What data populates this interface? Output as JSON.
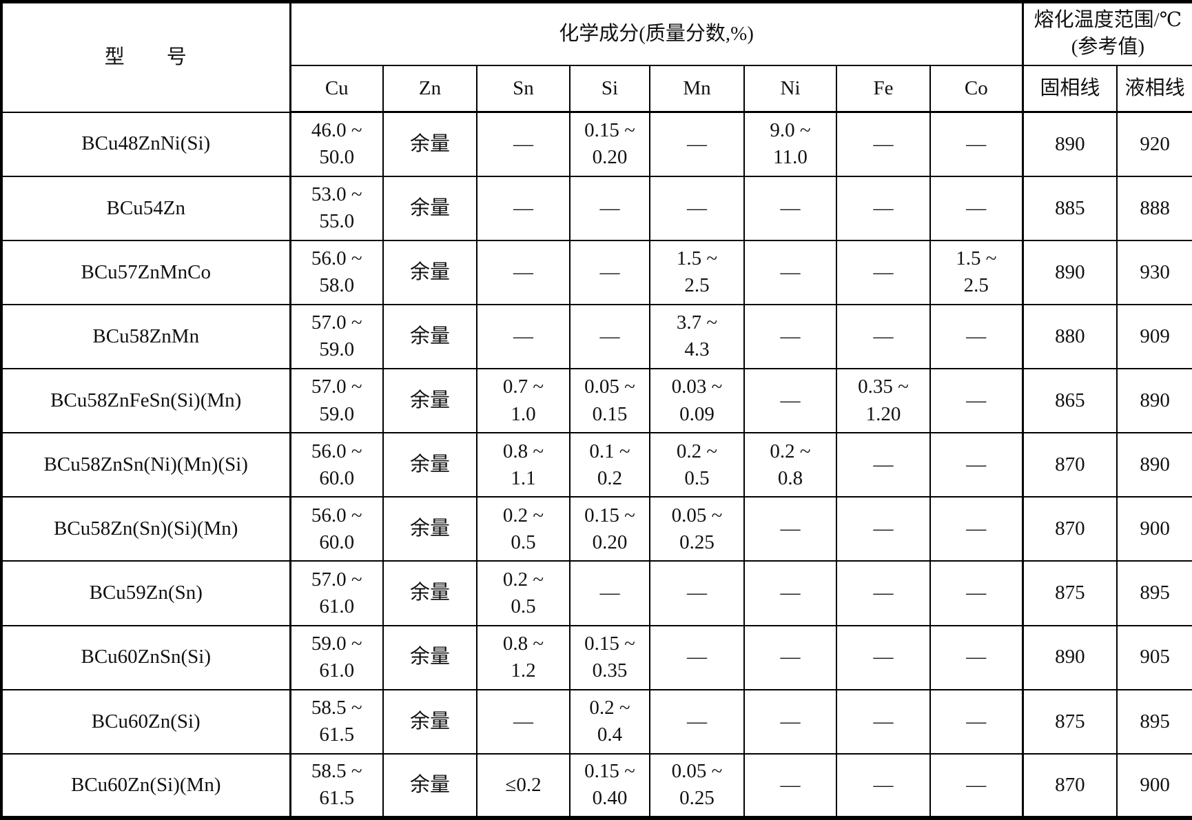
{
  "page": {
    "background": "#ffffff",
    "text_color": "#111111",
    "border_color": "#000000"
  },
  "table": {
    "header": {
      "model_col": "型　　号",
      "chem_group": "化学成分(质量分数,%)",
      "melt_group": "熔化温度范围/℃\n(参考值)",
      "elements": [
        "Cu",
        "Zn",
        "Sn",
        "Si",
        "Mn",
        "Ni",
        "Fe",
        "Co"
      ],
      "solidus": "固相线",
      "liquidus": "液相线"
    },
    "column_keys": [
      "cu",
      "zn",
      "sn",
      "si",
      "mn",
      "ni",
      "fe",
      "co",
      "solidus",
      "liquidus"
    ],
    "rows": [
      {
        "model": "BCu48ZnNi(Si)",
        "cells": [
          "46.0 ~\n50.0",
          "余量",
          "—",
          "0.15 ~\n0.20",
          "—",
          "9.0 ~\n11.0",
          "—",
          "—",
          "890",
          "920"
        ]
      },
      {
        "model": "BCu54Zn",
        "cells": [
          "53.0 ~\n55.0",
          "余量",
          "—",
          "—",
          "—",
          "—",
          "—",
          "—",
          "885",
          "888"
        ]
      },
      {
        "model": "BCu57ZnMnCo",
        "cells": [
          "56.0 ~\n58.0",
          "余量",
          "—",
          "—",
          "1.5 ~\n2.5",
          "—",
          "—",
          "1.5 ~\n2.5",
          "890",
          "930"
        ]
      },
      {
        "model": "BCu58ZnMn",
        "cells": [
          "57.0 ~\n59.0",
          "余量",
          "—",
          "—",
          "3.7 ~\n4.3",
          "—",
          "—",
          "—",
          "880",
          "909"
        ]
      },
      {
        "model": "BCu58ZnFeSn(Si)(Mn)",
        "cells": [
          "57.0 ~\n59.0",
          "余量",
          "0.7 ~\n1.0",
          "0.05 ~\n0.15",
          "0.03 ~\n0.09",
          "—",
          "0.35 ~\n1.20",
          "—",
          "865",
          "890"
        ]
      },
      {
        "model": "BCu58ZnSn(Ni)(Mn)(Si)",
        "cells": [
          "56.0 ~\n60.0",
          "余量",
          "0.8 ~\n1.1",
          "0.1 ~\n0.2",
          "0.2 ~\n0.5",
          "0.2 ~\n0.8",
          "—",
          "—",
          "870",
          "890"
        ]
      },
      {
        "model": "BCu58Zn(Sn)(Si)(Mn)",
        "cells": [
          "56.0 ~\n60.0",
          "余量",
          "0.2 ~\n0.5",
          "0.15 ~\n0.20",
          "0.05 ~\n0.25",
          "—",
          "—",
          "—",
          "870",
          "900"
        ]
      },
      {
        "model": "BCu59Zn(Sn)",
        "cells": [
          "57.0 ~\n61.0",
          "余量",
          "0.2 ~\n0.5",
          "—",
          "—",
          "—",
          "—",
          "—",
          "875",
          "895"
        ]
      },
      {
        "model": "BCu60ZnSn(Si)",
        "cells": [
          "59.0 ~\n61.0",
          "余量",
          "0.8 ~\n1.2",
          "0.15 ~\n0.35",
          "—",
          "—",
          "—",
          "—",
          "890",
          "905"
        ]
      },
      {
        "model": "BCu60Zn(Si)",
        "cells": [
          "58.5 ~\n61.5",
          "余量",
          "—",
          "0.2 ~\n0.4",
          "—",
          "—",
          "—",
          "—",
          "875",
          "895"
        ]
      },
      {
        "model": "BCu60Zn(Si)(Mn)",
        "cells": [
          "58.5 ~\n61.5",
          "余量",
          "≤0.2",
          "0.15 ~\n0.40",
          "0.05 ~\n0.25",
          "—",
          "—",
          "—",
          "870",
          "900"
        ]
      }
    ]
  }
}
